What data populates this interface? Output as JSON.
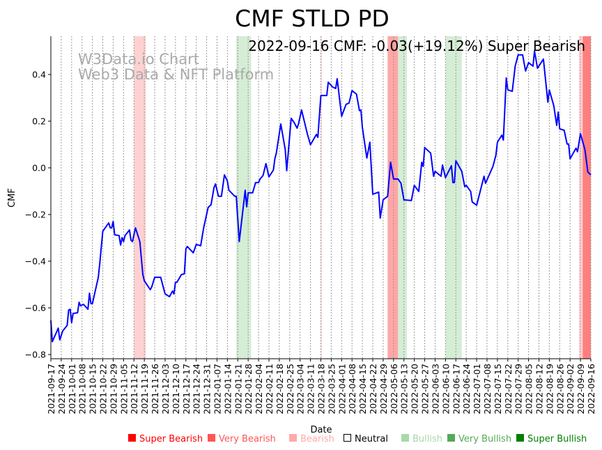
{
  "chart_data": {
    "type": "line",
    "title": "CMF STLD PD",
    "xlabel": "Date",
    "ylabel": "CMF",
    "info": "2022-09-16 CMF: -0.03(+19.12%) Super Bearish",
    "watermark": [
      "W3Data.io Chart",
      "Web3 Data & NFT Platform"
    ],
    "x_start_date": "2021-09-17",
    "xlim_days": [
      0,
      364
    ],
    "ylim": [
      -0.818,
      0.564
    ],
    "yticks": [
      -0.8,
      -0.6,
      -0.4,
      -0.2,
      0.0,
      0.2,
      0.4
    ],
    "ytick_labels": [
      "−0.8",
      "−0.6",
      "−0.4",
      "−0.2",
      "0.0",
      "0.2",
      "0.4"
    ],
    "xtick_labels": [
      "2021-09-17",
      "2021-09-24",
      "2021-10-01",
      "2021-10-08",
      "2021-10-15",
      "2021-10-22",
      "2021-10-29",
      "2021-11-05",
      "2021-11-12",
      "2021-11-19",
      "2021-11-26",
      "2021-12-03",
      "2021-12-10",
      "2021-12-17",
      "2021-12-24",
      "2021-12-31",
      "2022-01-07",
      "2022-01-14",
      "2022-01-21",
      "2022-01-28",
      "2022-02-04",
      "2022-02-11",
      "2022-02-18",
      "2022-02-25",
      "2022-03-04",
      "2022-03-11",
      "2022-03-18",
      "2022-03-25",
      "2022-04-01",
      "2022-04-08",
      "2022-04-15",
      "2022-04-22",
      "2022-04-29",
      "2022-05-06",
      "2022-05-13",
      "2022-05-20",
      "2022-05-27",
      "2022-06-03",
      "2022-06-10",
      "2022-06-17",
      "2022-06-24",
      "2022-07-01",
      "2022-07-08",
      "2022-07-15",
      "2022-07-22",
      "2022-07-29",
      "2022-08-05",
      "2022-08-12",
      "2022-08-19",
      "2022-08-26",
      "2022-09-02",
      "2022-09-09",
      "2022-09-16"
    ],
    "grid": "vertical dotted",
    "series": [
      {
        "name": "CMF",
        "color": "#0000ff",
        "points_day_value": [
          [
            0,
            -0.654
          ],
          [
            1,
            -0.745
          ],
          [
            5,
            -0.687
          ],
          [
            6,
            -0.737
          ],
          [
            8,
            -0.699
          ],
          [
            11,
            -0.675
          ],
          [
            12,
            -0.609
          ],
          [
            13,
            -0.606
          ],
          [
            14,
            -0.663
          ],
          [
            15,
            -0.624
          ],
          [
            18,
            -0.621
          ],
          [
            19,
            -0.576
          ],
          [
            20,
            -0.591
          ],
          [
            22,
            -0.585
          ],
          [
            25,
            -0.606
          ],
          [
            26,
            -0.537
          ],
          [
            27,
            -0.582
          ],
          [
            28,
            -0.582
          ],
          [
            32,
            -0.469
          ],
          [
            33,
            -0.406
          ],
          [
            35,
            -0.272
          ],
          [
            39,
            -0.236
          ],
          [
            40,
            -0.257
          ],
          [
            41,
            -0.257
          ],
          [
            42,
            -0.23
          ],
          [
            43,
            -0.287
          ],
          [
            46,
            -0.29
          ],
          [
            47,
            -0.331
          ],
          [
            48,
            -0.299
          ],
          [
            49,
            -0.316
          ],
          [
            50,
            -0.29
          ],
          [
            53,
            -0.266
          ],
          [
            54,
            -0.31
          ],
          [
            55,
            -0.316
          ],
          [
            57,
            -0.257
          ],
          [
            60,
            -0.316
          ],
          [
            62,
            -0.457
          ],
          [
            63,
            -0.484
          ],
          [
            67,
            -0.522
          ],
          [
            68,
            -0.51
          ],
          [
            70,
            -0.469
          ],
          [
            74,
            -0.469
          ],
          [
            77,
            -0.54
          ],
          [
            80,
            -0.552
          ],
          [
            82,
            -0.528
          ],
          [
            83,
            -0.54
          ],
          [
            84,
            -0.49
          ],
          [
            85,
            -0.49
          ],
          [
            88,
            -0.457
          ],
          [
            90,
            -0.454
          ],
          [
            91,
            -0.346
          ],
          [
            92,
            -0.337
          ],
          [
            96,
            -0.364
          ],
          [
            98,
            -0.328
          ],
          [
            101,
            -0.334
          ],
          [
            103,
            -0.257
          ],
          [
            106,
            -0.17
          ],
          [
            108,
            -0.158
          ],
          [
            110,
            -0.084
          ],
          [
            111,
            -0.069
          ],
          [
            113,
            -0.122
          ],
          [
            115,
            -0.122
          ],
          [
            117,
            -0.03
          ],
          [
            119,
            -0.057
          ],
          [
            120,
            -0.096
          ],
          [
            124,
            -0.122
          ],
          [
            125,
            -0.122
          ],
          [
            127,
            -0.316
          ],
          [
            131,
            -0.096
          ],
          [
            132,
            -0.167
          ],
          [
            133,
            -0.107
          ],
          [
            136,
            -0.107
          ],
          [
            138,
            -0.063
          ],
          [
            140,
            -0.063
          ],
          [
            141,
            -0.048
          ],
          [
            143,
            -0.033
          ],
          [
            145,
            0.018
          ],
          [
            147,
            -0.039
          ],
          [
            150,
            -0.009
          ],
          [
            151,
            0.039
          ],
          [
            152,
            0.063
          ],
          [
            155,
            0.188
          ],
          [
            158,
            0.078
          ],
          [
            159,
            -0.012
          ],
          [
            162,
            0.212
          ],
          [
            164,
            0.194
          ],
          [
            166,
            0.17
          ],
          [
            167,
            0.191
          ],
          [
            169,
            0.248
          ],
          [
            173,
            0.143
          ],
          [
            175,
            0.099
          ],
          [
            179,
            0.143
          ],
          [
            180,
            0.131
          ],
          [
            182,
            0.31
          ],
          [
            186,
            0.31
          ],
          [
            187,
            0.367
          ],
          [
            190,
            0.346
          ],
          [
            192,
            0.34
          ],
          [
            193,
            0.382
          ],
          [
            196,
            0.221
          ],
          [
            199,
            0.272
          ],
          [
            201,
            0.278
          ],
          [
            203,
            0.331
          ],
          [
            206,
            0.316
          ],
          [
            208,
            0.245
          ],
          [
            209,
            0.248
          ],
          [
            210,
            0.173
          ],
          [
            213,
            0.042
          ],
          [
            215,
            0.11
          ],
          [
            217,
            -0.113
          ],
          [
            221,
            -0.104
          ],
          [
            222,
            -0.215
          ],
          [
            224,
            -0.137
          ],
          [
            227,
            -0.122
          ],
          [
            229,
            0.024
          ],
          [
            231,
            -0.048
          ],
          [
            234,
            -0.048
          ],
          [
            236,
            -0.066
          ],
          [
            238,
            -0.137
          ],
          [
            243,
            -0.14
          ],
          [
            245,
            -0.075
          ],
          [
            248,
            -0.101
          ],
          [
            250,
            0.024
          ],
          [
            251,
            0.006
          ],
          [
            252,
            0.087
          ],
          [
            256,
            0.063
          ],
          [
            258,
            -0.036
          ],
          [
            259,
            -0.015
          ],
          [
            263,
            -0.036
          ],
          [
            264,
            0.012
          ],
          [
            266,
            -0.042
          ],
          [
            270,
            0.009
          ],
          [
            271,
            -0.063
          ],
          [
            272,
            -0.063
          ],
          [
            273,
            0.03
          ],
          [
            277,
            -0.015
          ],
          [
            279,
            -0.081
          ],
          [
            280,
            -0.075
          ],
          [
            283,
            -0.101
          ],
          [
            284,
            -0.146
          ],
          [
            287,
            -0.16
          ],
          [
            292,
            -0.036
          ],
          [
            293,
            -0.066
          ],
          [
            298,
            0.006
          ],
          [
            300,
            0.054
          ],
          [
            301,
            0.11
          ],
          [
            304,
            0.14
          ],
          [
            305,
            0.119
          ],
          [
            307,
            0.385
          ],
          [
            308,
            0.334
          ],
          [
            311,
            0.328
          ],
          [
            313,
            0.436
          ],
          [
            315,
            0.484
          ],
          [
            318,
            0.484
          ],
          [
            320,
            0.415
          ],
          [
            322,
            0.451
          ],
          [
            325,
            0.436
          ],
          [
            326,
            0.501
          ],
          [
            328,
            0.427
          ],
          [
            332,
            0.466
          ],
          [
            335,
            0.281
          ],
          [
            336,
            0.334
          ],
          [
            339,
            0.266
          ],
          [
            341,
            0.182
          ],
          [
            342,
            0.239
          ],
          [
            343,
            0.167
          ],
          [
            346,
            0.161
          ],
          [
            348,
            0.102
          ],
          [
            349,
            0.102
          ],
          [
            350,
            0.039
          ],
          [
            354,
            0.084
          ],
          [
            355,
            0.069
          ],
          [
            357,
            0.146
          ],
          [
            360,
            0.078
          ],
          [
            362,
            -0.018
          ],
          [
            364,
            -0.03
          ]
        ]
      }
    ],
    "signal_bands": [
      {
        "from_day": 56,
        "to_day": 64,
        "signal": "Bearish"
      },
      {
        "from_day": 125,
        "to_day": 135,
        "signal": "Bullish"
      },
      {
        "from_day": 182,
        "to_day": 182.6,
        "signal": "Bearish"
      },
      {
        "from_day": 227,
        "to_day": 234,
        "signal": "Very Bearish"
      },
      {
        "from_day": 234,
        "to_day": 240,
        "signal": "Bullish"
      },
      {
        "from_day": 266,
        "to_day": 277,
        "signal": "Bullish"
      },
      {
        "from_day": 356,
        "to_day": 358.5,
        "signal": "Bearish"
      },
      {
        "from_day": 358.5,
        "to_day": 364,
        "signal": "Super Bearish"
      }
    ],
    "legend": [
      {
        "label": "Super Bearish",
        "color": "#ff0000",
        "band": "#ff0000",
        "alpha": 0.5
      },
      {
        "label": "Very Bearish",
        "color": "#ff5555",
        "band": "#ff0000",
        "alpha": 0.35
      },
      {
        "label": "Bearish",
        "color": "#ffaaaa",
        "band": "#ff0000",
        "alpha": 0.18
      },
      {
        "label": "Neutral",
        "color": "#000000",
        "band": "none",
        "alpha": 0
      },
      {
        "label": "Bullish",
        "color": "#a8d8a8",
        "band": "#2ca02c",
        "alpha": 0.2
      },
      {
        "label": "Very Bullish",
        "color": "#55aa55",
        "band": "#2ca02c",
        "alpha": 0.35
      },
      {
        "label": "Super Bullish",
        "color": "#008000",
        "band": "#008000",
        "alpha": 0.5
      }
    ],
    "legend_placement": "bottom"
  }
}
